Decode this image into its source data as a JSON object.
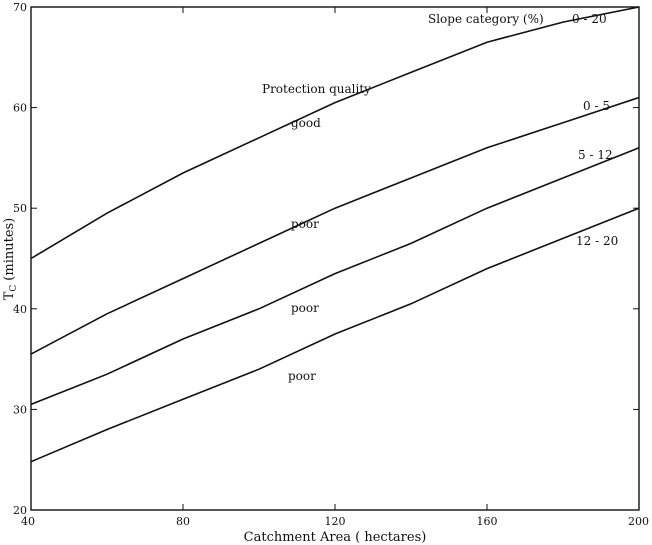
{
  "chart_data": {
    "type": "line",
    "title": "",
    "xlabel": "Catchment Area ( hectares)",
    "ylabel_main": "T",
    "ylabel_sub": "C",
    "ylabel_rest": "(minutes)",
    "xlim": [
      40,
      200
    ],
    "ylim": [
      20,
      70
    ],
    "x_ticks": [
      40,
      80,
      120,
      160,
      200
    ],
    "y_ticks": [
      20,
      30,
      40,
      50,
      60,
      70
    ],
    "grid": false,
    "x": [
      40,
      60,
      80,
      100,
      120,
      140,
      160,
      180,
      200
    ],
    "series": [
      {
        "name": "0 - 20",
        "values": [
          45.0,
          49.5,
          53.5,
          57.0,
          60.5,
          63.5,
          66.5,
          68.5,
          70.0
        ]
      },
      {
        "name": "0 - 5",
        "values": [
          35.5,
          39.5,
          43.0,
          46.5,
          50.0,
          53.0,
          56.0,
          58.5,
          61.0
        ]
      },
      {
        "name": "5 - 12",
        "values": [
          30.5,
          33.5,
          37.0,
          40.0,
          43.5,
          46.5,
          50.0,
          53.0,
          56.0
        ]
      },
      {
        "name": "12 - 20",
        "values": [
          24.8,
          28.0,
          31.0,
          34.0,
          37.5,
          40.5,
          44.0,
          47.0,
          50.0
        ]
      }
    ],
    "annotations": {
      "slope_category": "Slope category (%)",
      "protection_quality": "Protection quality",
      "good": "good",
      "poor": "poor"
    }
  }
}
